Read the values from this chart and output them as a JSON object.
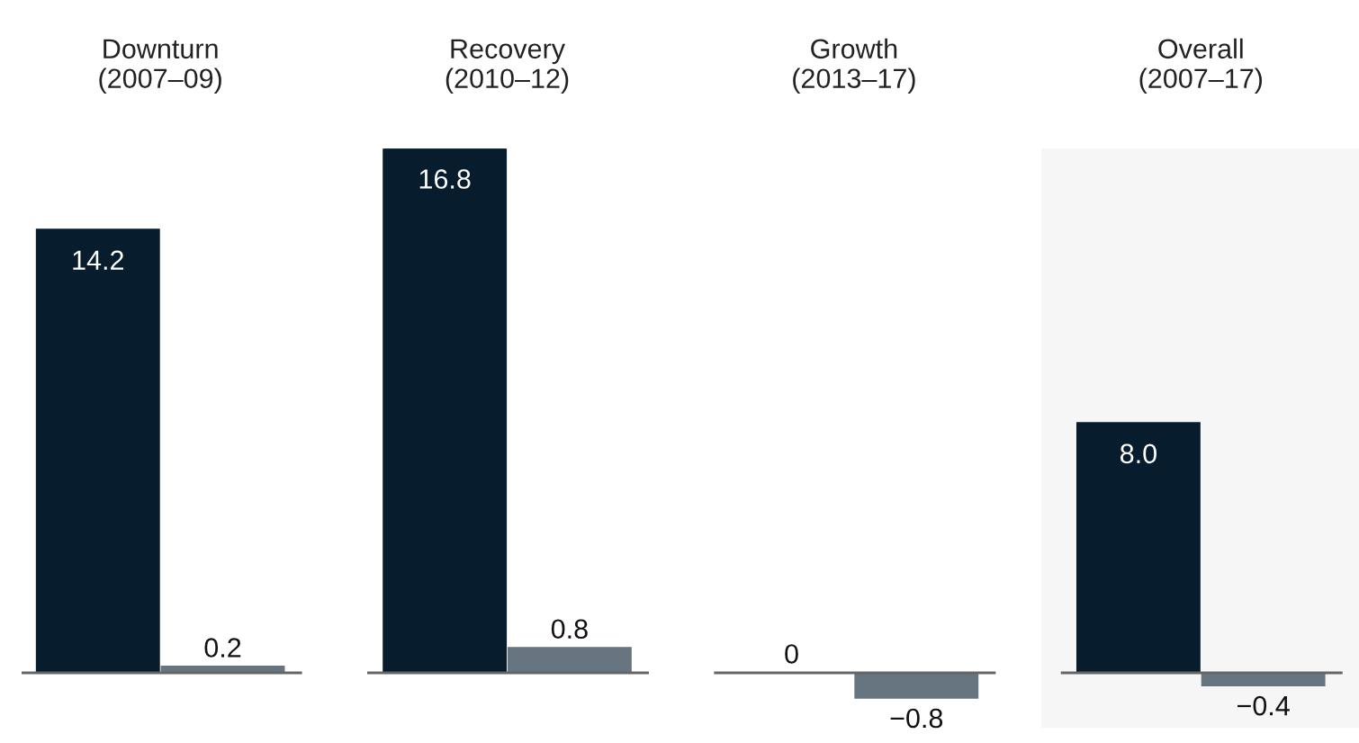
{
  "chart_data": {
    "type": "bar",
    "categories": [
      "Downturn\n(2007–09)",
      "Recovery\n(2010–12)",
      "Growth\n(2013–17)",
      "Overall\n(2007–17)"
    ],
    "series": [
      {
        "color": "#071c2c",
        "values": [
          14.2,
          16.8,
          0,
          8.0
        ],
        "value_labels": [
          "14.2",
          "16.8",
          "0",
          "8.0"
        ]
      },
      {
        "color": "#66757f",
        "values": [
          0.2,
          0.8,
          -0.8,
          -0.4
        ],
        "value_labels": [
          "0.2",
          "0.8",
          "−0.8",
          "−0.4"
        ]
      }
    ],
    "bands": [
      {
        "axis": "x",
        "from": "Overall\n(2007–17)",
        "to": "Overall\n(2007–17)",
        "color": "#f6f6f6"
      }
    ],
    "ref_lines": [
      {
        "axis": "y",
        "value": 0,
        "color": "#666666"
      }
    ]
  }
}
